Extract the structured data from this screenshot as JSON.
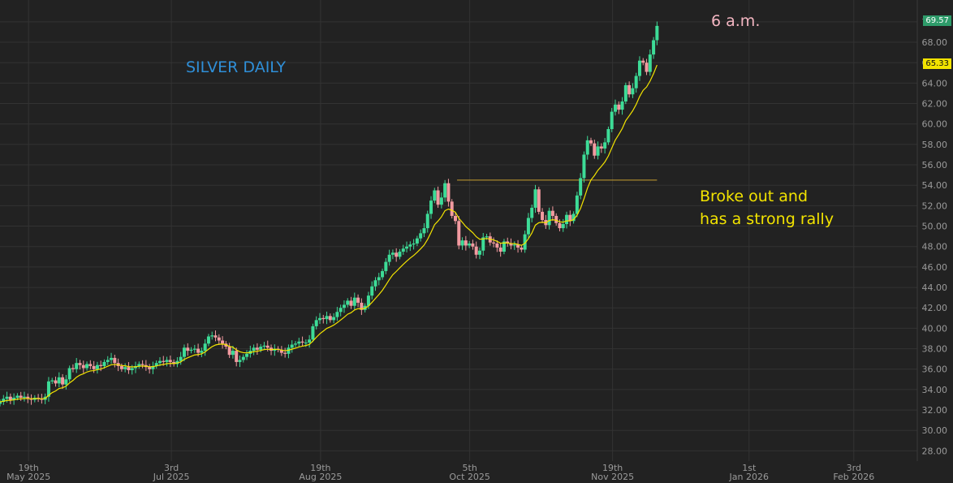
{
  "annotations": {
    "title": "SILVER DAILY",
    "time": "6 a.m.",
    "note_line1": "Broke out and",
    "note_line2": "has a strong rally"
  },
  "price_tags": {
    "last": "69.57",
    "ema": "65.33"
  },
  "colors": {
    "background": "#222222",
    "grid": "#333333",
    "up": "#3ddc97",
    "down": "#f29aa0",
    "ema": "#f2e300",
    "resistance": "#c8a030",
    "title": "#2f8fd8",
    "time": "#f4b6c2",
    "note": "#f2e300"
  },
  "chart_data": {
    "type": "candlestick",
    "title": "SILVER DAILY",
    "y_ticks": [
      "28.00",
      "30.00",
      "32.00",
      "34.00",
      "36.00",
      "38.00",
      "40.00",
      "42.00",
      "44.00",
      "46.00",
      "48.00",
      "50.00",
      "52.00",
      "54.00",
      "56.00",
      "58.00",
      "60.00",
      "62.00",
      "64.00",
      "66.00",
      "68.00",
      "70.00"
    ],
    "ylim": [
      27,
      71.5
    ],
    "x_ticks": [
      {
        "day": "19th",
        "month": "May 2025",
        "date": "2025-05-19"
      },
      {
        "day": "3rd",
        "month": "Jul 2025",
        "date": "2025-07-03"
      },
      {
        "day": "19th",
        "month": "Aug 2025",
        "date": "2025-08-19"
      },
      {
        "day": "5th",
        "month": "Oct 2025",
        "date": "2025-10-05"
      },
      {
        "day": "19th",
        "month": "Nov 2025",
        "date": "2025-11-19"
      },
      {
        "day": "1st",
        "month": "Jan 2026",
        "date": "2026-01-01"
      },
      {
        "day": "3rd",
        "month": "Feb 2026",
        "date": "2026-02-03"
      }
    ],
    "xlim": [
      "2025-05-10",
      "2026-02-23"
    ],
    "series": [
      {
        "name": "",
        "type": "candlestick",
        "closes": [
          32.8,
          33.1,
          33.3,
          33.0,
          33.2,
          33.4,
          33.2,
          33.3,
          33.1,
          33.0,
          33.2,
          33.1,
          33.0,
          33.3,
          34.8,
          34.9,
          34.6,
          35.2,
          34.5,
          35.0,
          36.1,
          36.0,
          36.6,
          36.4,
          36.1,
          36.5,
          36.3,
          36.0,
          36.4,
          36.3,
          36.7,
          36.9,
          37.1,
          36.6,
          36.3,
          36.0,
          36.2,
          35.9,
          36.1,
          36.3,
          36.5,
          36.4,
          36.2,
          36.0,
          36.3,
          36.6,
          36.8,
          36.7,
          36.9,
          36.7,
          36.5,
          36.8,
          37.2,
          38.1,
          37.8,
          37.9,
          38.0,
          37.6,
          37.8,
          38.5,
          39.2,
          39.3,
          39.1,
          38.8,
          38.5,
          38.2,
          37.4,
          37.8,
          36.7,
          36.9,
          37.2,
          37.5,
          37.8,
          38.1,
          37.9,
          38.2,
          38.3,
          38.1,
          37.8,
          38.0,
          37.9,
          37.6,
          37.5,
          38.1,
          38.4,
          38.5,
          38.7,
          38.6,
          38.6,
          38.9,
          40.2,
          40.8,
          41.0,
          40.9,
          41.2,
          40.8,
          41.1,
          41.6,
          42.0,
          42.3,
          42.7,
          42.2,
          43.0,
          42.5,
          41.8,
          42.2,
          43.2,
          44.1,
          44.7,
          45.0,
          45.6,
          46.5,
          47.2,
          47.4,
          47.0,
          47.5,
          47.8,
          48.0,
          48.2,
          48.3,
          48.8,
          49.3,
          49.8,
          51.2,
          52.5,
          53.5,
          52.1,
          52.8,
          54.2,
          52.4,
          51.0,
          50.5,
          48.1,
          48.6,
          48.1,
          48.3,
          48.0,
          47.2,
          47.6,
          48.9,
          49.0,
          48.4,
          48.3,
          47.9,
          47.5,
          48.5,
          48.3,
          48.1,
          48.2,
          47.9,
          47.7,
          49.2,
          50.8,
          51.8,
          53.6,
          51.4,
          50.6,
          50.1,
          51.5,
          51.0,
          50.3,
          49.8,
          50.2,
          51.1,
          50.5,
          51.2,
          53.0,
          54.7,
          57.0,
          58.4,
          58.1,
          56.9,
          57.8,
          57.6,
          58.2,
          59.5,
          61.2,
          61.9,
          61.4,
          62.2,
          63.8,
          62.9,
          63.5,
          64.7,
          66.2,
          66.0,
          65.1,
          66.8,
          68.2,
          69.6
        ]
      },
      {
        "name": "",
        "type": "line",
        "values": []
      }
    ],
    "resistance": {
      "value": 54.5,
      "from": "2025-10-01",
      "to": "2025-12-03"
    },
    "grid": true
  }
}
